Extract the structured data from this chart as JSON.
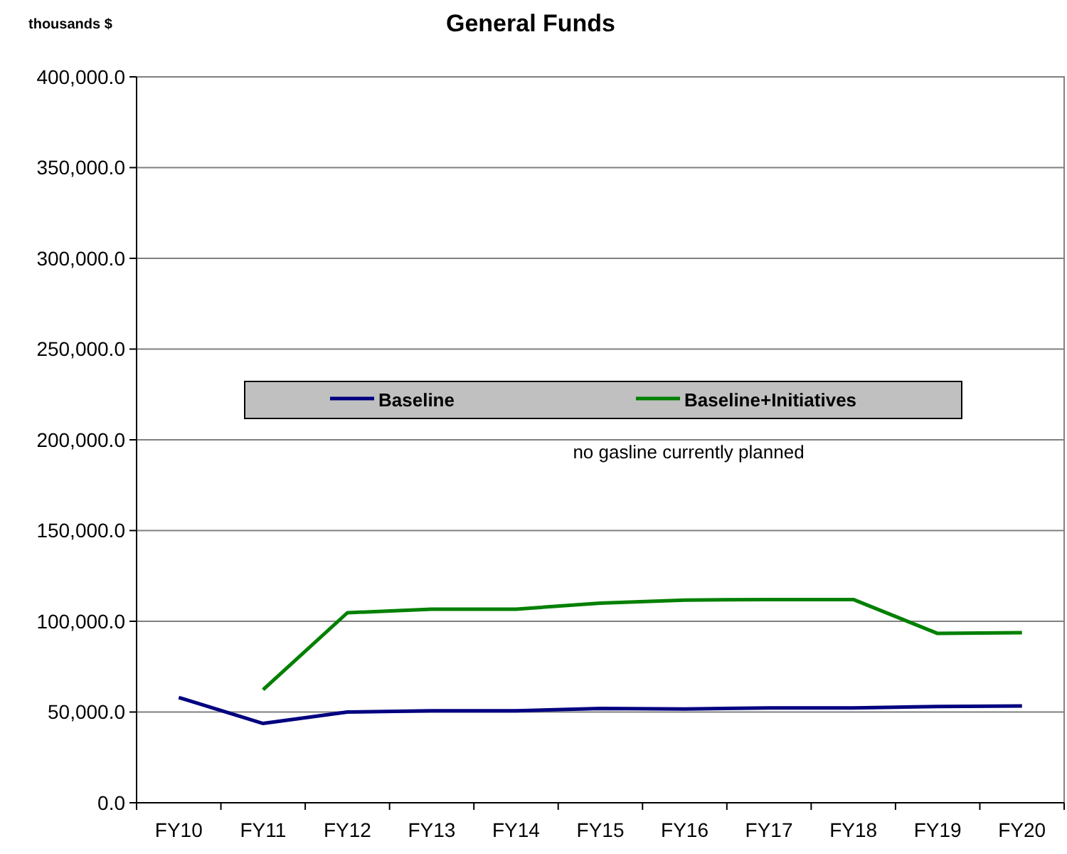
{
  "chart_data": {
    "type": "line",
    "title": "General Funds",
    "ylabel": "thousands $",
    "categories": [
      "FY10",
      "FY11",
      "FY12",
      "FY13",
      "FY14",
      "FY15",
      "FY16",
      "FY17",
      "FY18",
      "FY19",
      "FY20"
    ],
    "series": [
      {
        "name": "Baseline",
        "color": "#000080",
        "values": [
          58000,
          43700,
          50000,
          50700,
          50700,
          52000,
          51700,
          52300,
          52300,
          53000,
          53300
        ]
      },
      {
        "name": "Baseline+Initiatives",
        "color": "#008000",
        "values": [
          null,
          62300,
          104700,
          106700,
          106700,
          110000,
          111700,
          112000,
          112000,
          93300,
          93700
        ]
      }
    ],
    "ylim": [
      0,
      400000
    ],
    "yticks": [
      {
        "value": 0,
        "label": "0.0"
      },
      {
        "value": 50000,
        "label": "50,000.0"
      },
      {
        "value": 100000,
        "label": "100,000.0"
      },
      {
        "value": 150000,
        "label": "150,000.0"
      },
      {
        "value": 200000,
        "label": "200,000.0"
      },
      {
        "value": 250000,
        "label": "250,000.0"
      },
      {
        "value": 300000,
        "label": "300,000.0"
      },
      {
        "value": 350000,
        "label": "350,000.0"
      },
      {
        "value": 400000,
        "label": "400,000.0"
      }
    ],
    "grid": "y",
    "legend": "center",
    "marker": "none",
    "line_style": "solid",
    "annotations": [
      "no gasline currently planned"
    ]
  }
}
